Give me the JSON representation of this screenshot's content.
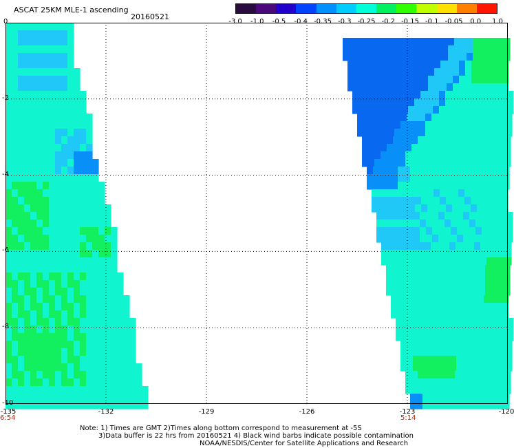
{
  "header": {
    "title": "ASCAT 25KM MLE-1 ascending",
    "date": "20160521"
  },
  "colorbar": {
    "labels": [
      "-3.0",
      "-1.0",
      "-0.5",
      "-0.4",
      "-0.35",
      "-0.3",
      "-0.25",
      "-0.2",
      "-0.15",
      "-0.1",
      "-0.05",
      "0.0",
      "1.0"
    ],
    "colors": [
      "#2a0b3e",
      "#4b0a7a",
      "#2200cc",
      "#0044ff",
      "#0090ff",
      "#00ccff",
      "#00ffd8",
      "#00f060",
      "#30ff00",
      "#c0ff00",
      "#ffe000",
      "#ff8000",
      "#ff1500"
    ]
  },
  "axes": {
    "y_labels": [
      "0",
      "-2",
      "-4",
      "-6",
      "-8",
      "-10"
    ],
    "x_labels": [
      "-135",
      "-132",
      "-129",
      "-126",
      "-123",
      "-120"
    ],
    "time_labels": [
      {
        "text": "6:54",
        "lon": "-135"
      },
      {
        "text": "5:14",
        "lon": "-123"
      }
    ]
  },
  "map": {
    "lon_range": [
      -135,
      -120
    ],
    "lat_range": [
      0,
      -10
    ],
    "swath_colors": {
      "green": "#12f060",
      "cyan": "#10f4d0",
      "light_blue": "#20c8f8",
      "mid_blue": "#0890f8",
      "deep_blue": "#0868f0"
    }
  },
  "footer": {
    "line1": "Note: 1) Times are GMT 2)Times along bottom correspond to measurement at -5S",
    "line2": "3)Data buffer is 22 hrs from 20160521 4) Black wind barbs indicate possible contamination",
    "line3": "NOAA/NESDIS/Center for Satellite Applications and Research"
  }
}
